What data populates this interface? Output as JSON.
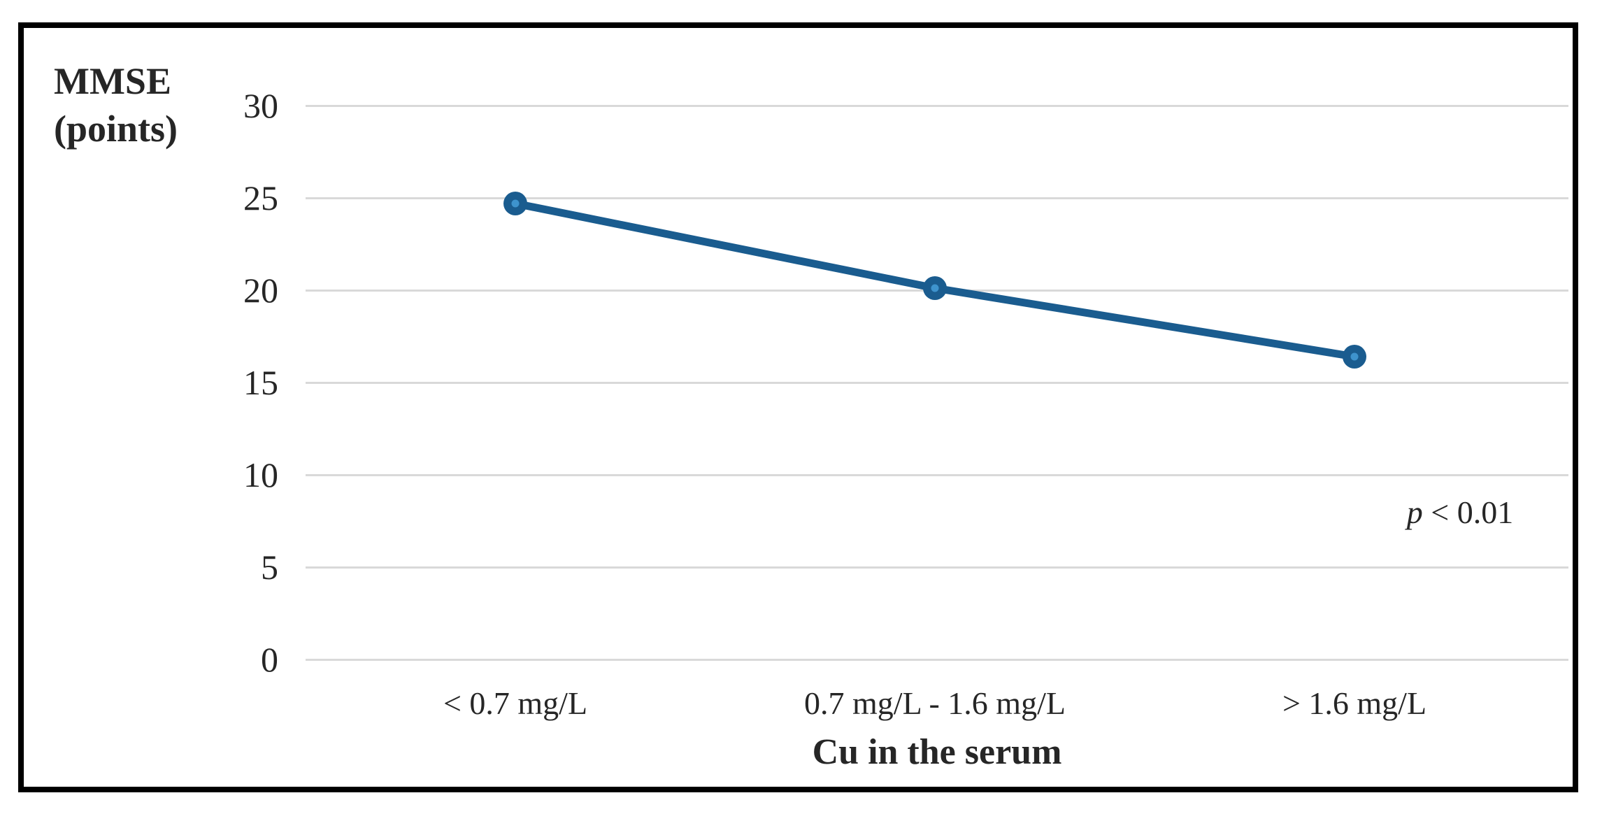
{
  "figure": {
    "background_color": "#ffffff",
    "border_color": "#000000",
    "text_color": "#262626",
    "gridline_color": "#d9d9d9"
  },
  "chart_data": {
    "type": "line",
    "title": "",
    "y_axis": {
      "label_line1": "MMSE",
      "label_line2": "(points)",
      "ticks": [
        30,
        25,
        20,
        15,
        10,
        5,
        0
      ],
      "ylim": [
        0,
        30
      ],
      "grid": true
    },
    "x_axis": {
      "title": "Cu in the serum",
      "categories": [
        "< 0.7 mg/L",
        "0.7 mg/L - 1.6 mg/L",
        "> 1.6 mg/L"
      ]
    },
    "series": [
      {
        "name": "MMSE",
        "values": [
          24.7,
          20.1,
          16.4
        ],
        "line_color": "#1a5c8f",
        "marker_color": "#1a5c8f",
        "marker_center_color": "#3e93cd"
      }
    ],
    "annotation": {
      "symbol": "p",
      "text": " < 0.01"
    },
    "legend_position": "none"
  }
}
